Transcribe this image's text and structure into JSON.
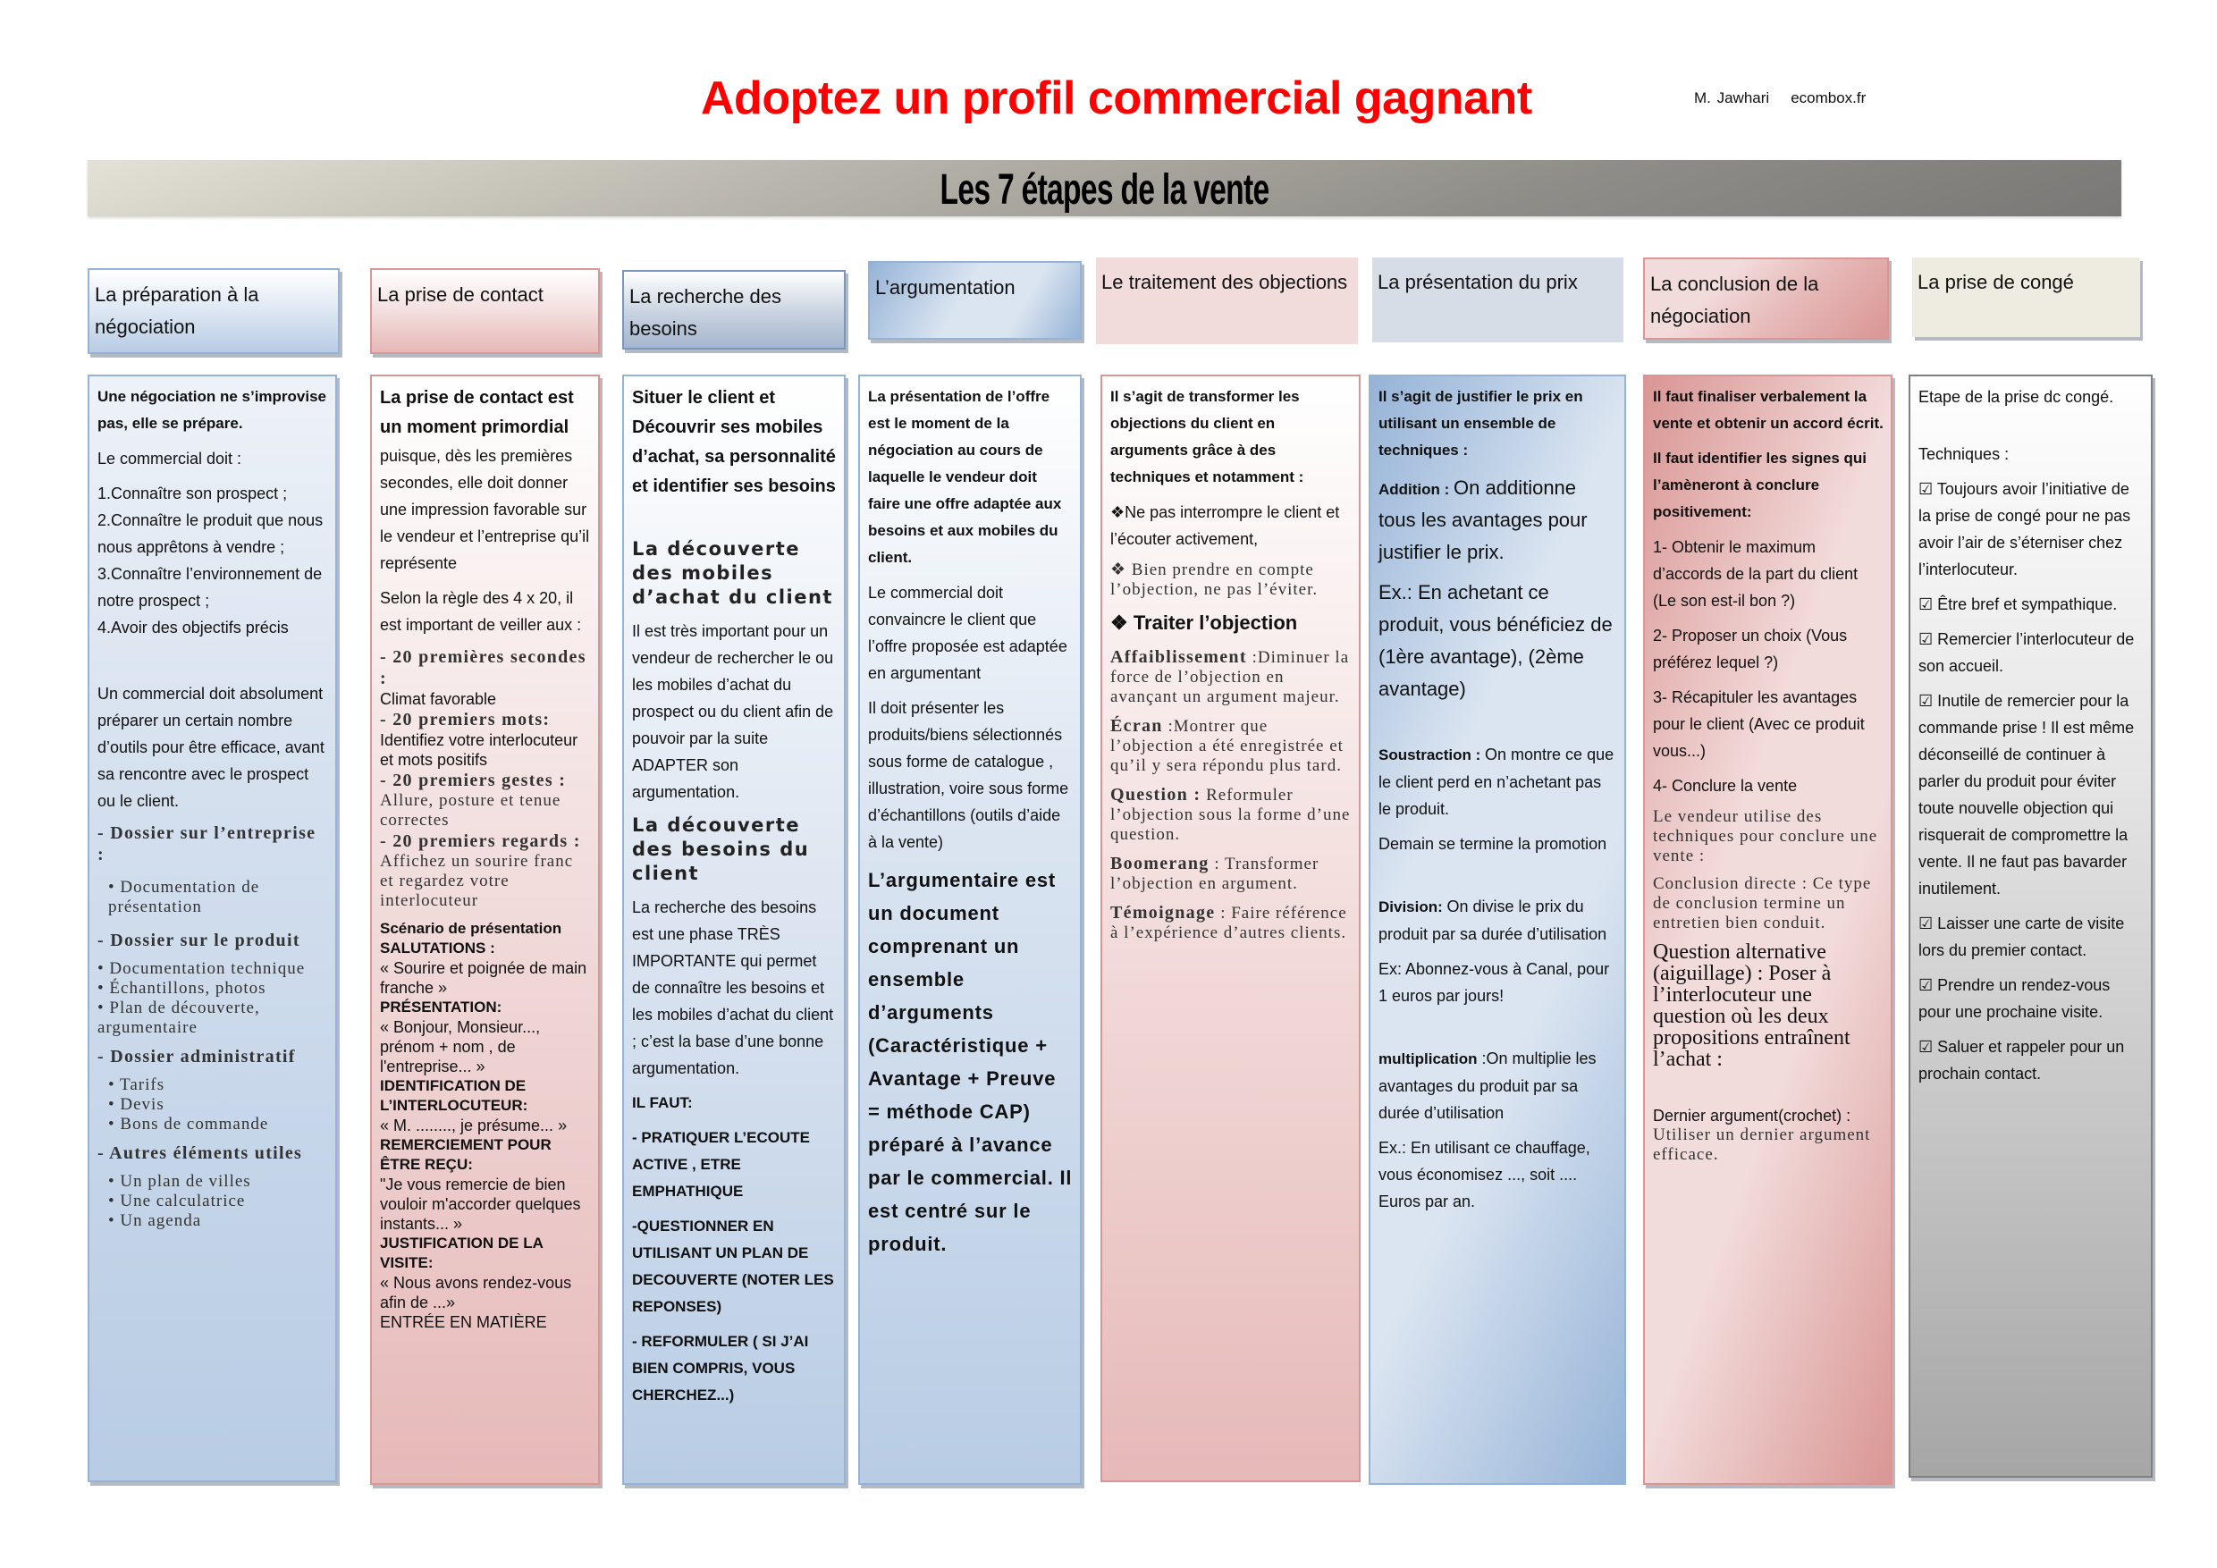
{
  "title": "Adoptez un profil commercial gagnant",
  "author": {
    "name": "M. Jawhari",
    "site": "ecombox.fr"
  },
  "banner": "Les 7 étapes de la vente",
  "colors": {
    "title": "#ff0000",
    "blue": "#b8cce4",
    "pink": "#e6b9b8",
    "gray": "#a6a6a6",
    "beige": "#eeece1"
  },
  "columns": [
    {
      "header": "La préparation à la négociation",
      "blocks": [
        {
          "r": [
            {
              "t": "Une négociation ne s’improvise pas, elle se prépare.",
              "s": "bs"
            }
          ]
        },
        {
          "r": [
            {
              "t": "Le commercial doit :",
              "s": "ns"
            }
          ]
        },
        {
          "r": [
            {
              "t": "1.Connaître son prospect ;\n2.Connaître le produit que nous nous apprêtons à vendre ;\n3.Connaître l’environnement de notre prospect ;\n4.Avoir des objectifs précis",
              "s": "ns"
            }
          ]
        },
        {
          "r": [
            {
              "t": "Un commercial doit absolument préparer un certain nombre d’outils pour être efficace, avant sa rencontre avec le prospect ou le client.",
              "s": "ns"
            }
          ]
        },
        {
          "r": [
            {
              "t": "- Dossier sur l’entreprise :",
              "s": "bserif"
            }
          ]
        },
        {
          "r": [
            {
              "t": "• Documentation de présentation",
              "s": "nserif"
            }
          ],
          "indent": true
        },
        {
          "r": [
            {
              "t": "- Dossier sur le produit",
              "s": "bserif"
            }
          ]
        },
        {
          "r": [
            {
              "t": "• Documentation technique\n• Échantillons, photos\n• Plan de découverte, argumentaire",
              "s": "nserif"
            }
          ]
        },
        {
          "r": [
            {
              "t": "- Dossier administratif",
              "s": "bserif"
            }
          ]
        },
        {
          "r": [
            {
              "t": "• Tarifs\n• Devis\n• Bons de commande",
              "s": "nserif"
            }
          ],
          "indent": true
        },
        {
          "r": [
            {
              "t": "- Autres éléments utiles",
              "s": "bserif"
            }
          ]
        },
        {
          "r": [
            {
              "t": "• Un plan de villes\n• Une calculatrice\n• Un agenda",
              "s": "nserif"
            }
          ],
          "indent": true
        }
      ]
    },
    {
      "header": "La prise de contact",
      "blocks": [
        {
          "r": [
            {
              "t": "La prise de contact est un moment primordial",
              "s": "bsl"
            }
          ],
          "tight": true
        },
        {
          "r": [
            {
              "t": "puisque, dès les premières secondes, elle doit donner une impression favorable sur le vendeur et l’entreprise qu’il représente",
              "s": "ns"
            }
          ]
        },
        {
          "r": [
            {
              "t": "Selon la règle des 4 x 20, il est important de veiller aux :",
              "s": "ns"
            }
          ]
        },
        {
          "r": [
            {
              "t": "- 20 premières secondes :",
              "s": "bserif"
            }
          ],
          "tight": true
        },
        {
          "r": [
            {
              "t": "Climat favorable",
              "s": "nsc"
            }
          ],
          "tight": true
        },
        {
          "r": [
            {
              "t": "- 20 premiers mots:",
              "s": "bserif"
            }
          ],
          "tight": true
        },
        {
          "r": [
            {
              "t": "Identifiez votre interlocuteur et mots positifs",
              "s": "nsc"
            }
          ],
          "tight": true
        },
        {
          "r": [
            {
              "t": "- 20 premiers gestes : ",
              "s": "bserif"
            },
            {
              "t": "Allure, posture et tenue correctes",
              "s": "nserif"
            }
          ],
          "tight": true
        },
        {
          "r": [
            {
              "t": "- 20 premiers regards : ",
              "s": "bserif"
            },
            {
              "t": "Affichez un sourire franc et regardez votre interlocuteur",
              "s": "nserif"
            }
          ]
        },
        {
          "r": [
            {
              "t": "Scénario de présentation\nSALUTATIONS :",
              "s": "bsc"
            }
          ],
          "tight": true
        },
        {
          "r": [
            {
              "t": "« Sourire et poignée de main franche »",
              "s": "nsc"
            }
          ],
          "tight": true
        },
        {
          "r": [
            {
              "t": "PRÉSENTATION:",
              "s": "bsc"
            }
          ],
          "tight": true
        },
        {
          "r": [
            {
              "t": "« Bonjour, Monsieur..., prénom + nom , de l'entreprise... »",
              "s": "nsc"
            }
          ],
          "tight": true
        },
        {
          "r": [
            {
              "t": "IDENTIFICATION DE L’INTERLOCUTEUR:",
              "s": "bsc"
            }
          ],
          "tight": true
        },
        {
          "r": [
            {
              "t": "« M. ........, je présume... »",
              "s": "nsc"
            }
          ],
          "tight": true
        },
        {
          "r": [
            {
              "t": "REMERCIEMENT POUR ÊTRE REÇU:",
              "s": "bsc"
            }
          ],
          "tight": true
        },
        {
          "r": [
            {
              "t": "\"Je vous remercie de bien vouloir m'accorder quelques instants... »",
              "s": "nsc"
            }
          ],
          "tight": true
        },
        {
          "r": [
            {
              "t": "JUSTIFICATION DE LA VISITE:",
              "s": "bsc"
            }
          ],
          "tight": true
        },
        {
          "r": [
            {
              "t": "« Nous avons rendez-vous afin de ...»",
              "s": "nsc"
            }
          ],
          "tight": true
        },
        {
          "r": [
            {
              "t": "ENTRÉE EN MATIÈRE",
              "s": "nsc"
            }
          ]
        }
      ]
    },
    {
      "header": "La recherche des besoins",
      "blocks": [
        {
          "r": [
            {
              "t": "Situer le client et Découvrir ses mobiles d’achat, sa personnalité et identifier ses besoins",
              "s": "bsl"
            }
          ]
        },
        {
          "r": [
            {
              "t": "La découverte des mobiles d’achat du client",
              "s": "heavy"
            }
          ]
        },
        {
          "r": [
            {
              "t": "Il est très important pour un vendeur de rechercher le ou les mobiles d’achat du prospect ou du client afin de pouvoir par la suite ADAPTER son argumentation.",
              "s": "ns"
            }
          ]
        },
        {
          "r": [
            {
              "t": "La découverte des besoins du client",
              "s": "heavy"
            }
          ]
        },
        {
          "r": [
            {
              "t": "La recherche des besoins est une phase TRÈS IMPORTANTE qui permet de connaître les besoins et les mobiles d’achat du client ; c’est la base d’une bonne argumentation.",
              "s": "ns"
            }
          ]
        },
        {
          "r": [
            {
              "t": "IL FAUT:",
              "s": "bs"
            }
          ]
        },
        {
          "r": [
            {
              "t": "- PRATIQUER L’ECOUTE ACTIVE , ETRE EMPHATHIQUE",
              "s": "bs"
            }
          ]
        },
        {
          "r": [
            {
              "t": "-QUESTIONNER EN UTILISANT UN PLAN DE DECOUVERTE (NOTER LES REPONSES)",
              "s": "bs"
            }
          ]
        },
        {
          "r": [
            {
              "t": "- REFORMULER ( SI J’AI BIEN COMPRIS, VOUS CHERCHEZ...)",
              "s": "bs"
            }
          ]
        }
      ]
    },
    {
      "header": "L’argumentation",
      "blocks": [
        {
          "r": [
            {
              "t": "La présentation de l’offre est le moment de la négociation au cours de laquelle le vendeur doit faire une offre adaptée aux besoins et aux mobiles du client.",
              "s": "bs"
            }
          ]
        },
        {
          "r": [
            {
              "t": "Le commercial doit convaincre le client que l’offre proposée est adaptée en argumentant",
              "s": "ns"
            }
          ]
        },
        {
          "r": [
            {
              "t": "Il doit présenter les produits/biens sélectionnés sous forme de catalogue , illustration, voire sous forme d’échantillons (outils d’aide à la vente)",
              "s": "ns"
            }
          ]
        },
        {
          "r": [
            {
              "t": "L’argumentaire est un document comprenant un ensemble d’arguments (Caractéristique + Avantage + Preuve = méthode CAP) préparé à l’avance par le commercial. Il est centré sur le produit.",
              "s": "bigb"
            }
          ]
        }
      ]
    },
    {
      "header": "Le traitement des objections",
      "blocks": [
        {
          "r": [
            {
              "t": "Il s’agit de transformer les objections du client en arguments grâce à des techniques et notamment :",
              "s": "bs"
            }
          ]
        },
        {
          "r": [
            {
              "t": "❖Ne pas interrompre le client et l’écouter activement,",
              "s": "ns"
            }
          ]
        },
        {
          "r": [
            {
              "t": "❖  Bien prendre en compte l’objection, ne pas l’éviter.",
              "s": "nserif"
            }
          ]
        },
        {
          "r": [
            {
              "t": "❖ Traiter l’objection",
              "s": "midb"
            }
          ]
        },
        {
          "r": [
            {
              "t": "Affaiblissement",
              "s": "bserif"
            },
            {
              "t": " :Diminuer la force de l’objection en avançant un argument majeur.",
              "s": "nserif"
            }
          ]
        },
        {
          "r": [
            {
              "t": "Écran",
              "s": "bserif"
            },
            {
              "t": " :Montrer que l’objection a été enregistrée et qu’il y sera répondu plus tard.",
              "s": "nserif"
            }
          ]
        },
        {
          "r": [
            {
              "t": "Question :",
              "s": "bserif"
            },
            {
              "t": " Reformuler l’objection sous la forme d’une question.",
              "s": "nserif"
            }
          ]
        },
        {
          "r": [
            {
              "t": "Boomerang",
              "s": "bserif"
            },
            {
              "t": " : Transformer l’objection en argument.",
              "s": "nserif"
            }
          ]
        },
        {
          "r": [
            {
              "t": "Témoignage",
              "s": "bserif"
            },
            {
              "t": " : Faire référence à l’expérience d’autres clients.",
              "s": "nserif"
            }
          ]
        }
      ]
    },
    {
      "header": "La présentation du prix",
      "blocks": [
        {
          "r": [
            {
              "t": "Il s’agit de justifier le prix en utilisant un ensemble de techniques :",
              "s": "bs"
            }
          ]
        },
        {
          "r": [
            {
              "t": "Addition : ",
              "s": "bs"
            },
            {
              "t": "On additionne tous les avantages pour justifier le prix.",
              "s": "big"
            }
          ]
        },
        {
          "r": [
            {
              "t": "Ex.: En achetant ce produit, vous bénéficiez de (1ère avantage), (2ème avantage)",
              "s": "big"
            }
          ]
        },
        {
          "r": [
            {
              "t": "Soustraction : ",
              "s": "bs"
            },
            {
              "t": "On montre ce que le client perd en n’achetant pas le produit.",
              "s": "ns"
            }
          ]
        },
        {
          "r": [
            {
              "t": "Demain se termine la promotion",
              "s": "ns"
            }
          ]
        },
        {
          "r": [
            {
              "t": "Division: ",
              "s": "bs"
            },
            {
              "t": "On divise le prix du produit par sa durée d’utilisation",
              "s": "ns"
            }
          ]
        },
        {
          "r": [
            {
              "t": "Ex: Abonnez-vous à Canal, pour 1 euros par jours!",
              "s": "ns"
            }
          ]
        },
        {
          "r": [
            {
              "t": "multiplication",
              "s": "bs"
            },
            {
              "t": " :On multiplie les avantages du produit par sa durée d’utilisation",
              "s": "ns"
            }
          ]
        },
        {
          "r": [
            {
              "t": "Ex.: En utilisant ce chauffage, vous économisez ..., soit .... Euros par an.",
              "s": "ns"
            }
          ]
        }
      ]
    },
    {
      "header": "La conclusion de la négociation",
      "blocks": [
        {
          "r": [
            {
              "t": "Il faut finaliser verbalement la vente et obtenir un accord écrit.",
              "s": "bs"
            }
          ]
        },
        {
          "r": [
            {
              "t": "Il faut identifier les signes qui l’amèneront à conclure positivement:",
              "s": "bs"
            }
          ]
        },
        {
          "r": [
            {
              "t": "1- Obtenir le maximum d’accords de la part du client (Le son est-il bon ?)",
              "s": "ns"
            }
          ]
        },
        {
          "r": [
            {
              "t": "2- Proposer un choix (Vous préférez lequel ?)",
              "s": "ns"
            }
          ]
        },
        {
          "r": [
            {
              "t": "3- Récapituler les avantages pour le client (Avec ce produit vous...)",
              "s": "ns"
            }
          ]
        },
        {
          "r": [
            {
              "t": "4- Conclure la vente",
              "s": "ns"
            }
          ]
        },
        {
          "r": [
            {
              "t": "Le vendeur utilise des techniques pour conclure une vente :",
              "s": "nserif"
            }
          ]
        },
        {
          "r": [
            {
              "t": "Conclusion directe : Ce type de conclusion termine un entretien bien conduit.",
              "s": "nserif"
            }
          ]
        },
        {
          "r": [
            {
              "t": "Question alternative (aiguillage) : Poser à l’interlocuteur une question où les deux propositions entraînent l’achat :",
              "s": "bigserif"
            }
          ]
        },
        {
          "r": [
            {
              "t": "Dernier argument(crochet) :",
              "s": "nsc"
            }
          ],
          "tight": true
        },
        {
          "r": [
            {
              "t": "Utiliser un dernier argument efficace.",
              "s": "nserif"
            }
          ]
        }
      ]
    },
    {
      "header": "La prise de congé",
      "blocks": [
        {
          "r": [
            {
              "t": "Etape de la prise dc congé.",
              "s": "ns"
            }
          ]
        },
        {
          "r": [
            {
              "t": "Techniques :",
              "s": "ns"
            }
          ]
        },
        {
          "r": [
            {
              "t": "☑ Toujours avoir l’initiative de la prise de congé pour ne pas avoir l’air de s’éterniser chez l’interlocuteur.",
              "s": "ns"
            }
          ]
        },
        {
          "r": [
            {
              "t": "☑ Être bref et sympathique.",
              "s": "ns"
            }
          ]
        },
        {
          "r": [
            {
              "t": "☑ Remercier l’interlocuteur de son accueil.",
              "s": "ns"
            }
          ]
        },
        {
          "r": [
            {
              "t": "☑ Inutile de remercier pour la commande prise ! Il est même déconseillé de continuer à parler du produit pour éviter toute nouvelle objection qui risquerait de compromettre la vente. Il ne faut pas bavarder inutilement.",
              "s": "ns"
            }
          ]
        },
        {
          "r": [
            {
              "t": "☑ Laisser une carte de visite lors du premier contact.",
              "s": "ns"
            }
          ]
        },
        {
          "r": [
            {
              "t": "☑ Prendre un rendez-vous pour une prochaine visite.",
              "s": "ns"
            }
          ]
        },
        {
          "r": [
            {
              "t": "☑ Saluer et rappeler pour un prochain contact.",
              "s": "ns"
            }
          ]
        }
      ]
    }
  ]
}
